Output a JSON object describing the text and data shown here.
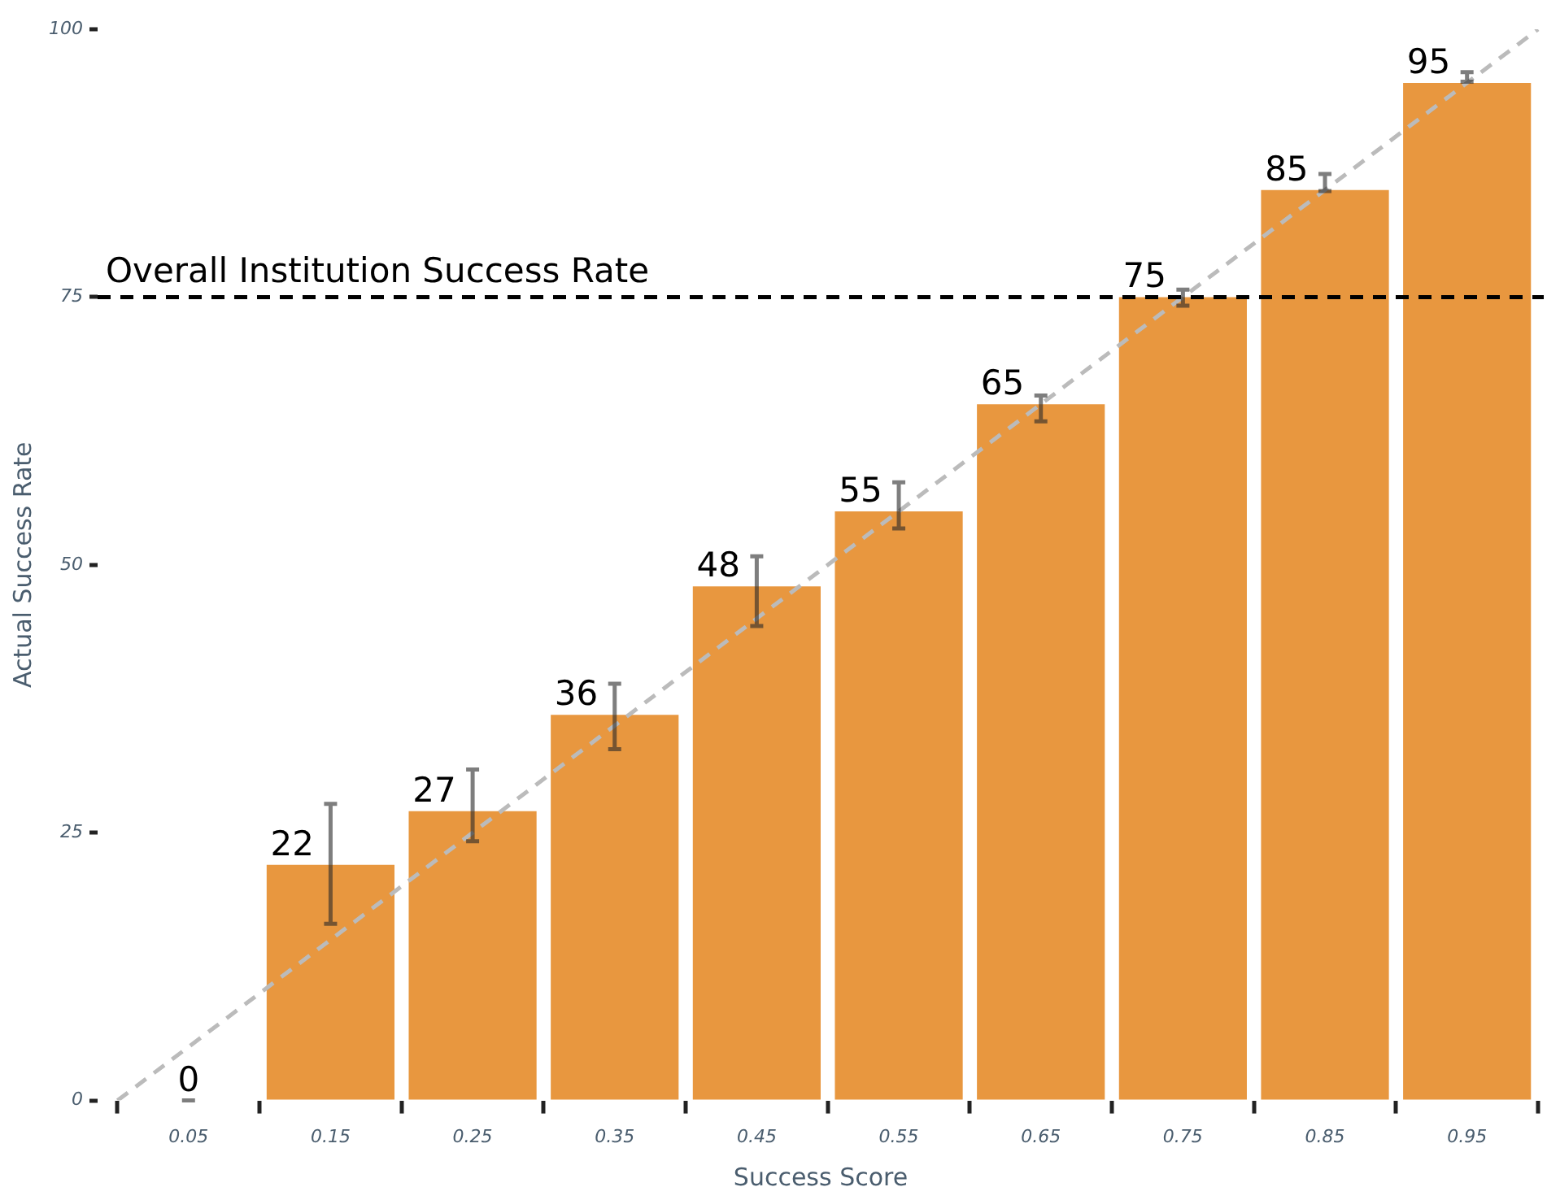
{
  "chart_data": {
    "type": "bar",
    "xlabel": "Success Score",
    "ylabel": "Actual Success Rate",
    "x": [
      0.05,
      0.15,
      0.25,
      0.35,
      0.45,
      0.55,
      0.65,
      0.75,
      0.85,
      0.95
    ],
    "xlim": [
      -0.014,
      1.004
    ],
    "xticks": [
      0.05,
      0.15,
      0.25,
      0.35,
      0.45,
      0.55,
      0.65,
      0.75,
      0.85,
      0.95
    ],
    "ylim": [
      0,
      100
    ],
    "yticks": [
      0,
      25,
      50,
      75,
      100
    ],
    "grid": false,
    "legend": false,
    "series": [
      {
        "color": "#e8973f",
        "values": [
          0,
          22,
          27,
          36,
          48,
          55,
          65,
          75,
          85,
          95
        ],
        "errors": [
          [
            0,
            0
          ],
          [
            16.5,
            27.7
          ],
          [
            24.2,
            30.9
          ],
          [
            32.8,
            38.9
          ],
          [
            44.3,
            50.8
          ],
          [
            53.4,
            57.7
          ],
          [
            63.4,
            65.8
          ],
          [
            74.2,
            75.7
          ],
          [
            84.9,
            86.5
          ],
          [
            95.1,
            96.0
          ]
        ],
        "value_labels": [
          "0",
          "22",
          "27",
          "36",
          "48",
          "55",
          "65",
          "75",
          "85",
          "95"
        ]
      },
      {
        "type": "line",
        "color": "#bbbbbb",
        "line_style": "dashed",
        "marker": "none",
        "x": [
          0,
          1
        ],
        "values": [
          0,
          100
        ]
      }
    ],
    "ref_lines": [
      {
        "axis": "y",
        "value": 75,
        "label": "Overall Institution Success Rate",
        "color": "#000000",
        "line_style": "dashed"
      }
    ]
  }
}
